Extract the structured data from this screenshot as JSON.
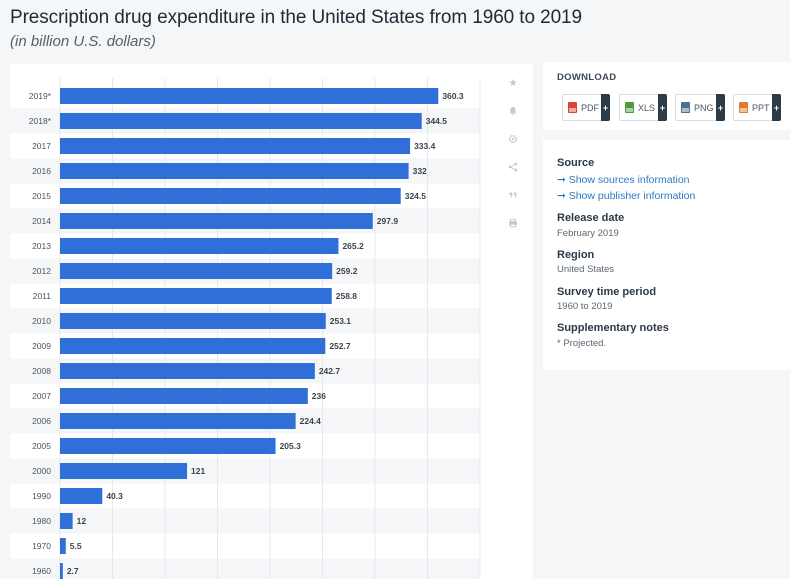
{
  "header": {
    "title": "Prescription drug expenditure in the United States from 1960 to 2019",
    "subtitle": "(in billion U.S. dollars)"
  },
  "toolbar": {
    "icons": [
      "star-icon",
      "bell-icon",
      "gear-icon",
      "share-icon",
      "quote-icon",
      "print-icon"
    ]
  },
  "download": {
    "title": "DOWNLOAD",
    "buttons": [
      {
        "label": "PDF",
        "color": "#d9432f"
      },
      {
        "label": "XLS",
        "color": "#4e9a3c"
      },
      {
        "label": "PNG",
        "color": "#4f6f8f"
      },
      {
        "label": "PPT",
        "color": "#e07a2e"
      }
    ],
    "plus": "+"
  },
  "info": {
    "source_title": "Source",
    "source_link": "➞ Show sources information",
    "publisher_link": "➞ Show publisher information",
    "release_title": "Release date",
    "release_value": "February 2019",
    "region_title": "Region",
    "region_value": "United States",
    "survey_title": "Survey time period",
    "survey_value": "1960 to 2019",
    "notes_title": "Supplementary notes",
    "notes_value": "* Projected."
  },
  "chart_data": {
    "type": "bar",
    "orientation": "horizontal",
    "title": "Prescription drug expenditure in the United States from 1960 to 2019",
    "subtitle": "(in billion U.S. dollars)",
    "categories": [
      "2019*",
      "2018*",
      "2017",
      "2016",
      "2015",
      "2014",
      "2013",
      "2012",
      "2011",
      "2010",
      "2009",
      "2008",
      "2007",
      "2006",
      "2005",
      "2000",
      "1990",
      "1980",
      "1970",
      "1960"
    ],
    "values": [
      360.3,
      344.5,
      333.4,
      332,
      324.5,
      297.9,
      265.2,
      259.2,
      258.8,
      253.1,
      252.7,
      242.7,
      236,
      224.4,
      205.3,
      121,
      40.3,
      12,
      5.5,
      2.7
    ],
    "value_labels": [
      "360.3",
      "344.5",
      "333.4",
      "332",
      "324.5",
      "297.9",
      "265.2",
      "259.2",
      "258.8",
      "253.1",
      "252.7",
      "242.7",
      "236",
      "224.4",
      "205.3",
      "121",
      "40.3",
      "12",
      "5.5",
      "2.7"
    ],
    "xlim": [
      0,
      400
    ],
    "grid": true,
    "bar_color": "#2f6fd7"
  }
}
